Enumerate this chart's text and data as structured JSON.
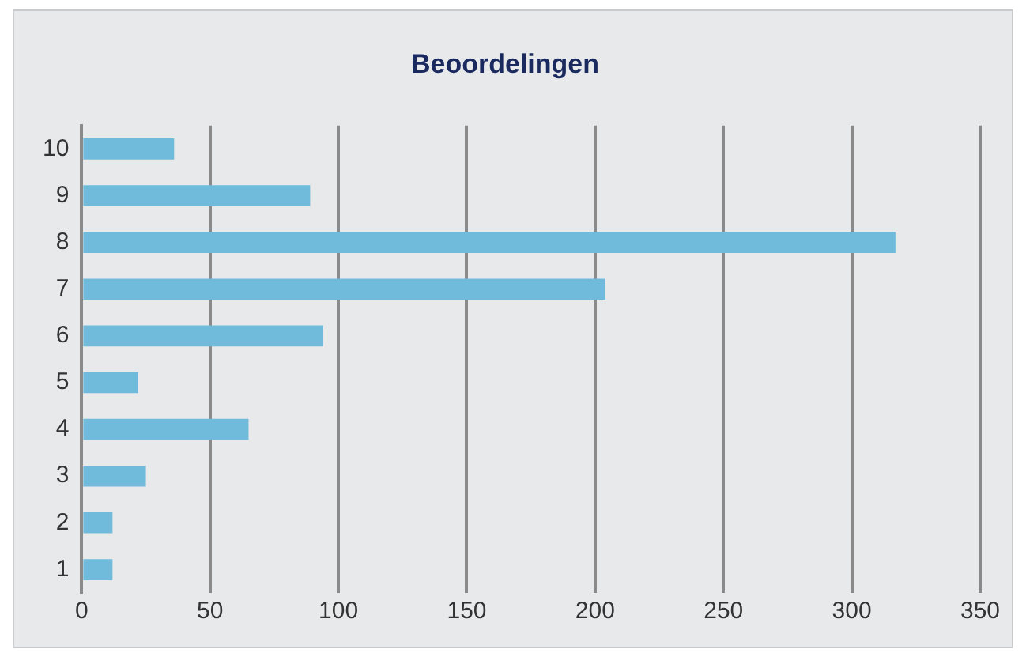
{
  "chart_data": {
    "type": "bar",
    "orientation": "horizontal",
    "title": "Beoordelingen",
    "categories": [
      "10",
      "9",
      "8",
      "7",
      "6",
      "5",
      "4",
      "3",
      "2",
      "1"
    ],
    "values": [
      36,
      89,
      317,
      204,
      94,
      22,
      65,
      25,
      12,
      12
    ],
    "color": "#70bbdc",
    "xlim": [
      0,
      350
    ],
    "xticks": [
      0,
      50,
      100,
      150,
      200,
      250,
      300,
      350
    ],
    "grid": "x",
    "legend": false
  }
}
